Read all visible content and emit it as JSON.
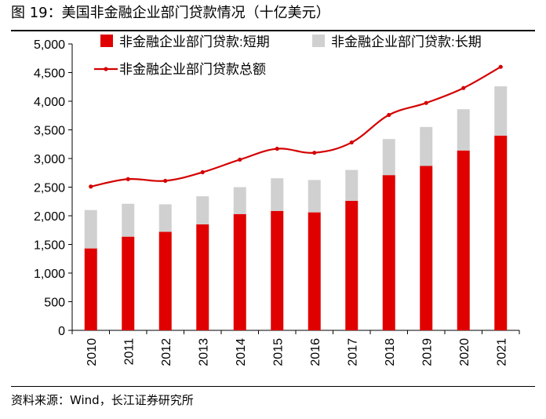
{
  "figure": {
    "title": "图 19：美国非金融企业部门贷款情况（十亿美元）",
    "source": "资料来源：Wind，长江证券研究所"
  },
  "chart_data": {
    "type": "bar",
    "stacked": true,
    "categories": [
      "2010",
      "2011",
      "2012",
      "2013",
      "2014",
      "2015",
      "2016",
      "2017",
      "2018",
      "2019",
      "2020",
      "2021"
    ],
    "series": [
      {
        "name": "非金融企业部门贷款:短期",
        "kind": "bar",
        "color": "#e00000",
        "values": [
          1430,
          1635,
          1720,
          1850,
          2030,
          2085,
          2060,
          2260,
          2710,
          2870,
          3140,
          3400
        ]
      },
      {
        "name": "非金融企业部门贷款:长期",
        "kind": "bar",
        "color": "#d0d0d0",
        "values": [
          670,
          575,
          480,
          490,
          470,
          570,
          565,
          540,
          630,
          680,
          720,
          860
        ]
      },
      {
        "name": "非金融企业部门贷款总额",
        "kind": "line",
        "color": "#d40000",
        "values": [
          2510,
          2640,
          2610,
          2760,
          2980,
          3170,
          3100,
          3280,
          3760,
          3970,
          4230,
          4600
        ]
      }
    ],
    "y_ticks": [
      "5,000",
      "4,500",
      "4,000",
      "3,500",
      "3,000",
      "2,500",
      "2,000",
      "1,500",
      "1,000",
      "500",
      "0"
    ],
    "ylim": [
      0,
      5000
    ],
    "legend_position": "top",
    "grid": false
  }
}
